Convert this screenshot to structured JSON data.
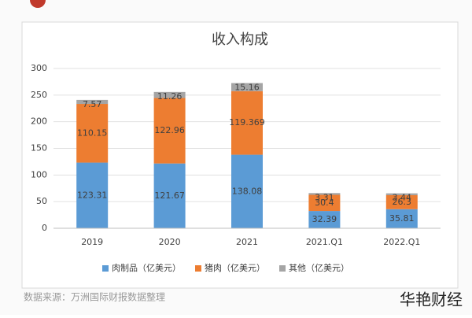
{
  "chart_data": {
    "type": "stacked_bar",
    "title": "收入构成",
    "categories": [
      "2019",
      "2020",
      "2021",
      "2021.Q1",
      "2022.Q1"
    ],
    "series": [
      {
        "name": "肉制品（亿美元）",
        "color": "#5b9bd5",
        "values": [
          123.31,
          121.67,
          138.08,
          32.39,
          35.81
        ]
      },
      {
        "name": "猪肉（亿美元）",
        "color": "#ed7d31",
        "values": [
          110.15,
          122.96,
          119.369,
          30.4,
          26.3
        ]
      },
      {
        "name": "其他（亿美元）",
        "color": "#a5a5a5",
        "values": [
          7.57,
          11.26,
          15.16,
          3.31,
          3.44
        ]
      }
    ],
    "ylim": [
      0,
      300
    ],
    "yticks": [
      0,
      50,
      100,
      150,
      200,
      250,
      300
    ],
    "grid": true,
    "legend": "bottom"
  },
  "source": "数据来源：万洲国际财报数据整理",
  "watermark": "华艳财经"
}
